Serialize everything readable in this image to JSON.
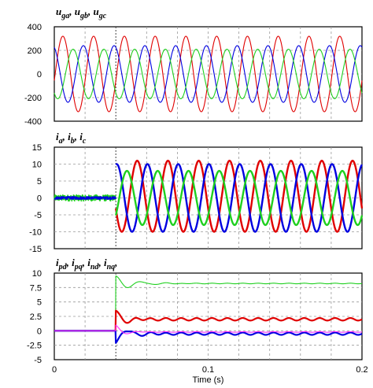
{
  "chart_data": [
    {
      "type": "line",
      "title": "u_ga, u_gb, u_gc",
      "title_parts": [
        {
          "base": "u",
          "sub": "ga",
          "sep": ", "
        },
        {
          "base": "u",
          "sub": "gb",
          "sep": ", "
        },
        {
          "base": "u",
          "sub": "gc",
          "sep": ""
        }
      ],
      "ylim": [
        -400,
        400
      ],
      "yticks": [
        "400",
        "200",
        "0",
        "-200",
        "-400"
      ],
      "ytick_values": [
        400,
        200,
        0,
        -200,
        -400
      ],
      "xlim": [
        0,
        0.2
      ],
      "grid": true,
      "series": [
        {
          "color": "#e00000",
          "kind": "sine",
          "amplitude": 320,
          "frequency_hz": 50,
          "phase_deg": -10,
          "start_x": 0,
          "end_x": 0.2
        },
        {
          "color": "#0000e0",
          "kind": "sine",
          "amplitude": 240,
          "frequency_hz": 50,
          "phase_deg": 110,
          "start_x": 0,
          "end_x": 0.2
        },
        {
          "color": "#1fd01f",
          "kind": "sine",
          "amplitude": 210,
          "frequency_hz": 50,
          "phase_deg": 230,
          "start_x": 0,
          "end_x": 0.2
        }
      ]
    },
    {
      "type": "line",
      "title": "i_a, i_b, i_c",
      "title_parts": [
        {
          "base": "i",
          "sub": "a",
          "sep": ", "
        },
        {
          "base": "i",
          "sub": "b",
          "sep": ", "
        },
        {
          "base": "i",
          "sub": "c",
          "sep": ""
        }
      ],
      "ylim": [
        -15,
        15
      ],
      "yticks": [
        "15",
        "10",
        "5",
        "0",
        "-5",
        "-10",
        "-15"
      ],
      "ytick_values": [
        15,
        10,
        5,
        0,
        -5,
        -10,
        -15
      ],
      "xlim": [
        0,
        0.2
      ],
      "grid": true,
      "series": [
        {
          "color": "#1fd01f",
          "kind": "noise_band",
          "amplitude": 0.9,
          "start_x": 0,
          "end_x": 0.04
        },
        {
          "color": "#0000e0",
          "kind": "noise_band",
          "amplitude": 0.4,
          "start_x": 0,
          "end_x": 0.04
        },
        {
          "color": "#e00000",
          "kind": "sine",
          "amplitude": 10.5,
          "offset": 0.5,
          "frequency_hz": 50,
          "phase_deg": 200,
          "start_x": 0.04,
          "end_x": 0.2
        },
        {
          "color": "#0000e0",
          "kind": "sine",
          "amplitude": 10,
          "offset": 0,
          "frequency_hz": 50,
          "phase_deg": 80,
          "start_x": 0.04,
          "end_x": 0.2
        },
        {
          "color": "#1fd01f",
          "kind": "sine",
          "amplitude": 8,
          "offset": 0,
          "frequency_hz": 50,
          "phase_deg": 320,
          "start_x": 0.04,
          "end_x": 0.2
        }
      ]
    },
    {
      "type": "line",
      "title": "i_pd, i_pq, i_nd, i_nq,",
      "title_parts": [
        {
          "base": "i",
          "sub": "pd",
          "sep": ", "
        },
        {
          "base": "i",
          "sub": "pq",
          "sep": ", "
        },
        {
          "base": "i",
          "sub": "nd",
          "sep": ", "
        },
        {
          "base": "i",
          "sub": "nq",
          "sep": ","
        }
      ],
      "ylim": [
        -5,
        10
      ],
      "yticks": [
        "10",
        "7.5",
        "5",
        "2.5",
        "0",
        "-2.5",
        "-5"
      ],
      "ytick_values": [
        10,
        7.5,
        5,
        2.5,
        0,
        -2.5,
        -5
      ],
      "xlim": [
        0,
        0.2
      ],
      "xticks": [
        "0",
        "0.1",
        "0.2"
      ],
      "xtick_values": [
        0,
        0.1,
        0.2
      ],
      "xlabel": "Time (s)",
      "grid": true,
      "series": [
        {
          "color": "#1fd01f",
          "kind": "step",
          "initial": 0,
          "final": 8.2,
          "overshoot": 1.3,
          "tau": 0.012,
          "ripple": 0.05,
          "start_x": 0,
          "end_x": 0.2
        },
        {
          "color": "#e00000",
          "kind": "step",
          "initial": 0,
          "final": 2.0,
          "overshoot": 1.5,
          "tau": 0.006,
          "ripple": 0.22,
          "start_x": 0,
          "end_x": 0.2
        },
        {
          "color": "#0000e0",
          "kind": "step",
          "initial": 0,
          "final": -0.5,
          "overshoot": -1.6,
          "tau": 0.008,
          "ripple": 0.2,
          "start_x": 0,
          "end_x": 0.2
        },
        {
          "color": "#ff30ff",
          "kind": "step",
          "initial": 0,
          "final": -0.2,
          "overshoot": 1.2,
          "tau": 0.005,
          "ripple": 0.05,
          "start_x": 0,
          "end_x": 0.2
        }
      ]
    }
  ]
}
